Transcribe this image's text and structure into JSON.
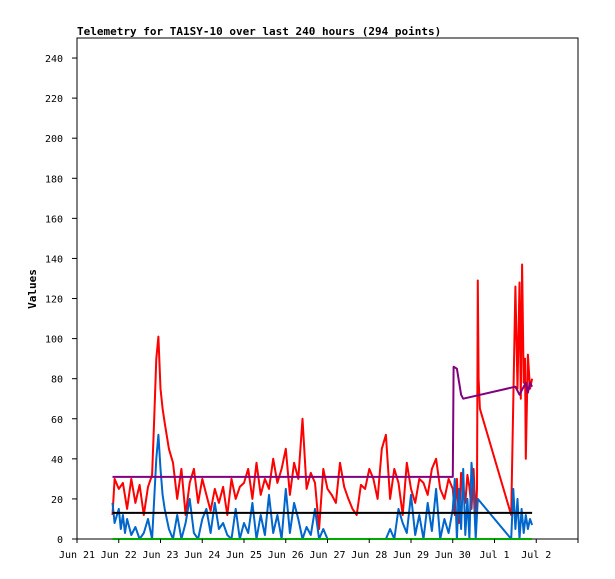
{
  "chart_data": {
    "type": "line",
    "title": "Telemetry for TA1SY-10 over last 240 hours (294 points)",
    "xlabel": "",
    "ylabel": "Values",
    "ylim": [
      0,
      250
    ],
    "xlim": [
      0,
      12
    ],
    "grid": false,
    "y_ticks": [
      0,
      20,
      40,
      60,
      80,
      100,
      120,
      140,
      160,
      180,
      200,
      220,
      240
    ],
    "x_tick_positions": [
      0,
      1,
      2,
      3,
      4,
      5,
      6,
      7,
      8,
      9,
      10,
      11,
      12
    ],
    "x_tick_labels": [
      "Jun 21",
      "Jun 22",
      "Jun 23",
      "Jun 24",
      "Jun 25",
      "Jun 26",
      "Jun 27",
      "Jun 28",
      "Jun 29",
      "Jun 30",
      "Jul 1",
      "Jul 2",
      ""
    ],
    "series": [
      {
        "color": "#ff0000",
        "x": [
          0.85,
          0.9,
          1.0,
          1.1,
          1.2,
          1.3,
          1.4,
          1.5,
          1.6,
          1.7,
          1.8,
          1.85,
          1.9,
          1.95,
          2.0,
          2.05,
          2.1,
          2.2,
          2.3,
          2.4,
          2.5,
          2.6,
          2.7,
          2.8,
          2.9,
          3.0,
          3.1,
          3.2,
          3.3,
          3.4,
          3.5,
          3.6,
          3.7,
          3.8,
          3.9,
          4.0,
          4.1,
          4.2,
          4.3,
          4.4,
          4.5,
          4.6,
          4.7,
          4.8,
          4.9,
          5.0,
          5.1,
          5.2,
          5.3,
          5.4,
          5.5,
          5.6,
          5.7,
          5.8,
          5.9,
          6.0,
          6.1,
          6.2,
          6.3,
          6.4,
          6.5,
          6.6,
          6.7,
          6.8,
          6.9,
          7.0,
          7.1,
          7.2,
          7.3,
          7.4,
          7.5,
          7.6,
          7.7,
          7.8,
          7.9,
          8.0,
          8.1,
          8.2,
          8.3,
          8.4,
          8.5,
          8.6,
          8.7,
          8.8,
          8.9,
          9.0,
          9.05,
          9.1,
          9.15,
          9.2,
          9.25,
          9.3,
          9.35,
          9.4,
          9.45,
          9.5,
          9.55,
          9.58,
          9.6,
          9.62,
          9.65,
          10.4,
          10.5,
          10.55,
          10.6,
          10.63,
          10.66,
          10.7,
          10.73,
          10.75,
          10.8,
          10.85,
          10.9
        ],
        "y": [
          12,
          30,
          25,
          28,
          15,
          30,
          18,
          27,
          12,
          26,
          32,
          60,
          90,
          101,
          75,
          65,
          58,
          45,
          38,
          20,
          35,
          12,
          28,
          35,
          18,
          30,
          22,
          14,
          25,
          18,
          26,
          12,
          30,
          20,
          26,
          28,
          35,
          20,
          38,
          22,
          30,
          25,
          40,
          28,
          35,
          45,
          22,
          38,
          30,
          60,
          25,
          33,
          28,
          5,
          35,
          25,
          22,
          18,
          38,
          26,
          20,
          15,
          12,
          27,
          25,
          35,
          30,
          20,
          45,
          52,
          20,
          35,
          28,
          12,
          38,
          25,
          18,
          30,
          28,
          22,
          35,
          40,
          25,
          20,
          30,
          25,
          12,
          30,
          8,
          33,
          25,
          18,
          32,
          26,
          15,
          35,
          10,
          25,
          129,
          80,
          65,
          12,
          126,
          75,
          128,
          70,
          137,
          78,
          90,
          40,
          92,
          75,
          80
        ]
      },
      {
        "color": "#0066cc",
        "x": [
          0.85,
          0.9,
          1.0,
          1.05,
          1.1,
          1.15,
          1.2,
          1.3,
          1.4,
          1.5,
          1.6,
          1.7,
          1.8,
          1.85,
          1.9,
          1.95,
          2.0,
          2.05,
          2.1,
          2.2,
          2.3,
          2.4,
          2.5,
          2.6,
          2.7,
          2.8,
          2.9,
          3.0,
          3.1,
          3.2,
          3.3,
          3.4,
          3.5,
          3.6,
          3.7,
          3.8,
          3.9,
          4.0,
          4.1,
          4.2,
          4.3,
          4.4,
          4.5,
          4.6,
          4.7,
          4.8,
          4.9,
          5.0,
          5.1,
          5.2,
          5.3,
          5.4,
          5.5,
          5.6,
          5.7,
          5.8,
          5.9,
          6.0,
          6.5,
          6.7,
          7.0,
          7.2,
          7.4,
          7.5,
          7.6,
          7.7,
          7.8,
          7.9,
          8.0,
          8.1,
          8.2,
          8.3,
          8.4,
          8.5,
          8.6,
          8.7,
          8.8,
          8.9,
          9.0,
          9.05,
          9.1,
          9.15,
          9.2,
          9.25,
          9.3,
          9.35,
          9.4,
          9.45,
          9.5,
          9.55,
          9.6,
          10.4,
          10.45,
          10.5,
          10.55,
          10.6,
          10.65,
          10.7,
          10.75,
          10.8,
          10.85,
          10.9
        ],
        "y": [
          18,
          8,
          15,
          5,
          12,
          3,
          10,
          2,
          6,
          0,
          3,
          10,
          0,
          20,
          40,
          52,
          35,
          22,
          15,
          5,
          0,
          12,
          0,
          8,
          20,
          3,
          0,
          10,
          15,
          3,
          18,
          5,
          8,
          2,
          0,
          15,
          0,
          8,
          3,
          18,
          0,
          12,
          2,
          22,
          3,
          12,
          0,
          25,
          3,
          18,
          10,
          0,
          6,
          2,
          15,
          0,
          5,
          0,
          0,
          0,
          0,
          0,
          0,
          5,
          0,
          15,
          8,
          3,
          22,
          2,
          12,
          0,
          18,
          4,
          25,
          0,
          10,
          3,
          15,
          30,
          0,
          25,
          5,
          35,
          2,
          20,
          0,
          38,
          25,
          0,
          20,
          0,
          25,
          5,
          20,
          0,
          15,
          3,
          12,
          5,
          10,
          7
        ]
      },
      {
        "color": "#800080",
        "x": [
          0.85,
          9.0,
          9.02,
          9.1,
          9.2,
          9.25,
          10.5,
          10.6,
          10.7,
          10.75,
          10.8,
          10.85,
          10.9
        ],
        "y": [
          31,
          31,
          86,
          85,
          72,
          70,
          76,
          72,
          76,
          78,
          73,
          78,
          76
        ]
      },
      {
        "color": "#000000",
        "x": [
          0.85,
          10.9
        ],
        "y": [
          13,
          13
        ]
      },
      {
        "color": "#00aa00",
        "x": [
          0.85,
          10.9
        ],
        "y": [
          0,
          0
        ]
      }
    ]
  }
}
